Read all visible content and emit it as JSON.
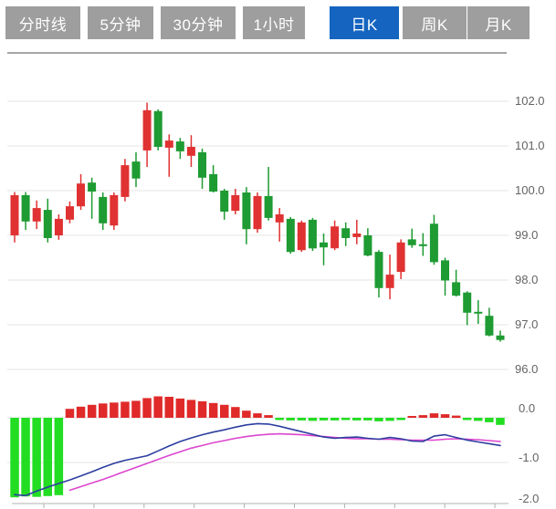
{
  "tabs": [
    {
      "label": "分时线",
      "active": false
    },
    {
      "label": "5分钟",
      "active": false
    },
    {
      "label": "30分钟",
      "active": false
    },
    {
      "label": "1小时",
      "active": false
    },
    {
      "label": "日K",
      "active": true
    },
    {
      "label": "周K",
      "active": false
    },
    {
      "label": "月K",
      "active": false
    }
  ],
  "chart_data": {
    "type": "candlestick",
    "title": "",
    "price_axis": {
      "labels": [
        "102.0",
        "101.0",
        "100.0",
        "99.0",
        "98.0",
        "97.0",
        "96.0"
      ],
      "max": 102.0,
      "min": 96.0,
      "grid": true
    },
    "macd_axis": {
      "labels": [
        "0.0",
        "-1.0",
        "-2.0"
      ],
      "max": 0.0,
      "min": -2.0
    },
    "candles_ohlc": [
      [
        99.0,
        99.97,
        98.84,
        99.9
      ],
      [
        99.9,
        99.97,
        99.12,
        99.31
      ],
      [
        99.31,
        99.78,
        99.14,
        99.61
      ],
      [
        99.57,
        99.82,
        98.84,
        98.94
      ],
      [
        99.0,
        99.47,
        98.9,
        99.37
      ],
      [
        99.35,
        99.76,
        99.27,
        99.65
      ],
      [
        99.65,
        100.37,
        99.57,
        100.16
      ],
      [
        100.18,
        100.29,
        99.37,
        99.98
      ],
      [
        99.86,
        99.96,
        99.12,
        99.27
      ],
      [
        99.22,
        99.96,
        99.12,
        99.9
      ],
      [
        99.86,
        100.71,
        99.76,
        100.57
      ],
      [
        100.65,
        100.86,
        100.08,
        100.27
      ],
      [
        100.9,
        101.97,
        100.53,
        101.8
      ],
      [
        101.78,
        101.82,
        100.9,
        100.98
      ],
      [
        100.96,
        101.26,
        100.31,
        101.12
      ],
      [
        101.1,
        101.18,
        100.71,
        100.88
      ],
      [
        100.78,
        101.24,
        100.53,
        100.98
      ],
      [
        100.86,
        100.94,
        100.04,
        100.29
      ],
      [
        100.37,
        100.57,
        99.96,
        99.98
      ],
      [
        100.0,
        100.04,
        99.35,
        99.53
      ],
      [
        99.55,
        100.04,
        99.47,
        99.9
      ],
      [
        99.96,
        100.08,
        98.8,
        99.14
      ],
      [
        99.14,
        99.96,
        99.06,
        99.88
      ],
      [
        99.88,
        100.53,
        99.33,
        99.39
      ],
      [
        99.29,
        99.61,
        98.86,
        99.47
      ],
      [
        99.37,
        99.41,
        98.59,
        98.63
      ],
      [
        98.67,
        99.33,
        98.63,
        99.29
      ],
      [
        99.35,
        99.39,
        98.65,
        98.71
      ],
      [
        98.84,
        99.04,
        98.33,
        98.73
      ],
      [
        98.71,
        99.33,
        98.67,
        99.2
      ],
      [
        99.16,
        99.29,
        98.76,
        98.94
      ],
      [
        98.96,
        99.35,
        98.8,
        99.04
      ],
      [
        99.0,
        99.16,
        98.53,
        98.55
      ],
      [
        98.63,
        98.67,
        97.61,
        97.82
      ],
      [
        97.82,
        98.57,
        97.57,
        98.12
      ],
      [
        98.18,
        98.91,
        98.02,
        98.84
      ],
      [
        98.91,
        99.15,
        98.72,
        98.78
      ],
      [
        98.8,
        99.05,
        98.54,
        98.76
      ],
      [
        99.26,
        99.46,
        98.34,
        98.4
      ],
      [
        98.44,
        98.5,
        97.65,
        97.99
      ],
      [
        97.95,
        98.23,
        97.63,
        97.65
      ],
      [
        97.72,
        97.75,
        96.99,
        97.27
      ],
      [
        97.29,
        97.55,
        97.02,
        97.25
      ],
      [
        97.2,
        97.38,
        96.74,
        96.76
      ],
      [
        96.76,
        96.87,
        96.62,
        96.66
      ]
    ],
    "macd_histogram": [
      -1.78,
      -1.76,
      -1.77,
      -1.75,
      -1.73,
      0.2,
      0.25,
      0.29,
      0.32,
      0.34,
      0.36,
      0.38,
      0.44,
      0.48,
      0.47,
      0.43,
      0.4,
      0.37,
      0.33,
      0.29,
      0.24,
      0.16,
      0.1,
      0.06,
      -0.05,
      -0.06,
      -0.06,
      -0.07,
      -0.06,
      -0.06,
      -0.05,
      -0.06,
      -0.06,
      -0.08,
      -0.07,
      -0.05,
      0.04,
      0.06,
      0.1,
      0.08,
      0.05,
      -0.05,
      -0.07,
      -0.1,
      -0.16
    ],
    "dif_line": [
      -1.72,
      -1.74,
      -1.64,
      -1.55,
      -1.47,
      -1.39,
      -1.3,
      -1.21,
      -1.11,
      -1.02,
      -0.95,
      -0.9,
      -0.85,
      -0.74,
      -0.63,
      -0.53,
      -0.45,
      -0.38,
      -0.32,
      -0.27,
      -0.21,
      -0.16,
      -0.13,
      -0.14,
      -0.19,
      -0.25,
      -0.31,
      -0.37,
      -0.43,
      -0.46,
      -0.44,
      -0.43,
      -0.46,
      -0.48,
      -0.44,
      -0.47,
      -0.52,
      -0.53,
      -0.41,
      -0.38,
      -0.44,
      -0.5,
      -0.54,
      -0.58,
      -0.62
    ],
    "dea_line": [
      null,
      null,
      null,
      null,
      null,
      -1.62,
      -1.54,
      -1.46,
      -1.38,
      -1.29,
      -1.2,
      -1.11,
      -1.02,
      -0.93,
      -0.84,
      -0.76,
      -0.68,
      -0.62,
      -0.56,
      -0.51,
      -0.46,
      -0.42,
      -0.39,
      -0.37,
      -0.36,
      -0.37,
      -0.38,
      -0.4,
      -0.42,
      -0.44,
      -0.46,
      -0.47,
      -0.47,
      -0.48,
      -0.48,
      -0.49,
      -0.5,
      -0.5,
      -0.5,
      -0.48,
      -0.47,
      -0.48,
      -0.49,
      -0.51,
      -0.53
    ],
    "colors": {
      "up_candle": "#e03232",
      "down_candle": "#1e9b32",
      "hist_positive": "#e02a2a",
      "hist_negative": "#22dd22",
      "dif_line": "#2c3e9f",
      "dea_line": "#dc46cf",
      "grid": "#e4e4e4",
      "top_border": "#a6a6a6",
      "axis": "#b0b0b0",
      "active_tab": "#1565c0",
      "inactive_tab": "#9e9e9e"
    },
    "legend": null,
    "xlabel": "",
    "ylabel": ""
  }
}
